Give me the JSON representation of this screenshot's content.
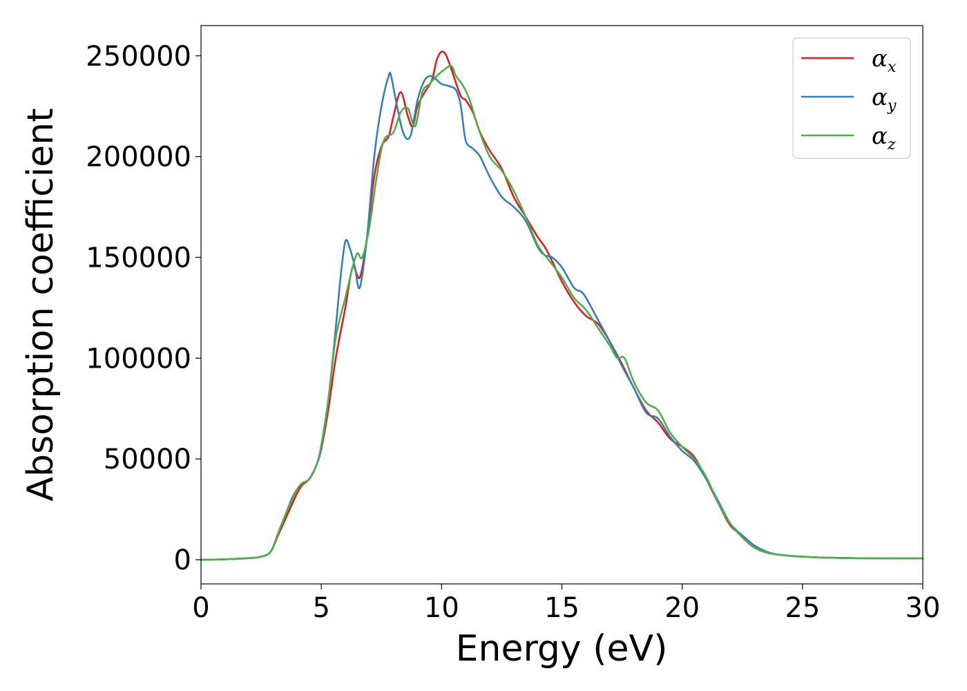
{
  "chart_data": {
    "type": "line",
    "xlabel": "Energy (eV)",
    "ylabel": "Absorption coefficient",
    "xlim": [
      0,
      30
    ],
    "ylim": [
      -12000,
      265000
    ],
    "xticks": [
      0,
      5,
      10,
      15,
      20,
      25,
      30
    ],
    "yticks": [
      0,
      50000,
      100000,
      150000,
      200000,
      250000
    ],
    "grid": false,
    "legend_position": "top-right",
    "series": [
      {
        "name": "α_x",
        "symbol": "α",
        "subscript": "x",
        "color": "#e41a1c",
        "x": [
          0,
          1,
          2,
          2.5,
          2.9,
          3.2,
          3.5,
          3.8,
          4.0,
          4.2,
          4.5,
          4.8,
          5.0,
          5.3,
          5.6,
          6.0,
          6.3,
          6.6,
          6.9,
          7.2,
          7.5,
          7.8,
          8.0,
          8.3,
          8.6,
          8.8,
          9.0,
          9.3,
          9.6,
          9.8,
          10.0,
          10.2,
          10.5,
          10.8,
          11.0,
          11.3,
          11.6,
          12.0,
          12.5,
          13.0,
          13.5,
          14.0,
          14.3,
          14.6,
          15.0,
          15.5,
          16.0,
          16.5,
          17.0,
          17.5,
          18.0,
          18.5,
          19.0,
          19.5,
          20.0,
          20.5,
          21.0,
          21.5,
          22.0,
          22.5,
          23.0,
          23.5,
          24.0,
          25.0,
          26.0,
          28.0,
          30.0
        ],
        "y": [
          0,
          200,
          800,
          1500,
          4000,
          12000,
          20000,
          28000,
          33000,
          37000,
          40000,
          47000,
          55000,
          75000,
          100000,
          125000,
          145000,
          140000,
          160000,
          190000,
          205000,
          210000,
          220000,
          232000,
          220000,
          215000,
          225000,
          232000,
          238000,
          248000,
          252000,
          250000,
          240000,
          230000,
          228000,
          222000,
          212000,
          203000,
          194000,
          180000,
          170000,
          160000,
          155000,
          148000,
          138000,
          128000,
          121000,
          117000,
          108000,
          97000,
          85000,
          74000,
          68000,
          60000,
          56000,
          51000,
          40000,
          28000,
          17000,
          12000,
          7000,
          4000,
          2500,
          1500,
          1000,
          700,
          600
        ]
      },
      {
        "name": "α_y",
        "symbol": "α",
        "subscript": "y",
        "color": "#377eb8",
        "x": [
          0,
          1,
          2,
          2.5,
          2.9,
          3.2,
          3.5,
          3.8,
          4.0,
          4.2,
          4.5,
          4.8,
          5.0,
          5.3,
          5.6,
          5.8,
          6.0,
          6.2,
          6.4,
          6.6,
          6.9,
          7.2,
          7.5,
          7.8,
          7.9,
          8.1,
          8.4,
          8.7,
          9.0,
          9.3,
          9.6,
          9.8,
          10.0,
          10.3,
          10.6,
          10.8,
          11.0,
          11.3,
          11.6,
          12.0,
          12.5,
          13.0,
          13.5,
          14.0,
          14.3,
          14.6,
          15.0,
          15.5,
          15.8,
          16.0,
          16.5,
          17.0,
          17.5,
          18.0,
          18.5,
          19.0,
          19.5,
          20.0,
          20.5,
          21.0,
          21.5,
          22.0,
          22.5,
          23.0,
          23.5,
          24.0,
          25.0,
          26.0,
          28.0,
          30.0
        ],
        "y": [
          0,
          200,
          800,
          1500,
          4000,
          13000,
          22000,
          31000,
          35000,
          38000,
          40000,
          47000,
          56000,
          80000,
          115000,
          140000,
          158000,
          154000,
          145000,
          135000,
          160000,
          200000,
          225000,
          240000,
          240000,
          228000,
          212000,
          210000,
          228000,
          238000,
          240000,
          238000,
          236000,
          235000,
          233000,
          225000,
          208000,
          204000,
          200000,
          190000,
          180000,
          175000,
          168000,
          155000,
          151000,
          150000,
          145000,
          135000,
          133000,
          130000,
          119000,
          108000,
          96000,
          85000,
          73000,
          70000,
          61000,
          54000,
          49000,
          40000,
          29000,
          18000,
          12000,
          7000,
          4000,
          2500,
          1500,
          1000,
          700,
          600
        ]
      },
      {
        "name": "α_z",
        "symbol": "α",
        "subscript": "z",
        "color": "#4daf4a",
        "x": [
          0,
          1,
          2,
          2.5,
          2.9,
          3.2,
          3.5,
          3.8,
          4.0,
          4.2,
          4.5,
          4.8,
          5.0,
          5.3,
          5.6,
          6.0,
          6.3,
          6.5,
          6.7,
          7.0,
          7.3,
          7.6,
          8.0,
          8.3,
          8.6,
          8.9,
          9.2,
          9.5,
          9.8,
          10.1,
          10.4,
          10.6,
          10.9,
          11.2,
          11.5,
          12.0,
          12.5,
          13.0,
          13.5,
          14.0,
          14.5,
          15.0,
          15.5,
          16.0,
          16.5,
          17.0,
          17.3,
          17.6,
          18.0,
          18.5,
          19.0,
          19.5,
          20.0,
          20.5,
          21.0,
          21.5,
          22.0,
          22.5,
          23.0,
          23.5,
          24.0,
          25.0,
          26.0,
          28.0,
          30.0
        ],
        "y": [
          0,
          200,
          800,
          1500,
          4000,
          13000,
          22000,
          30000,
          35000,
          38000,
          40000,
          47000,
          57000,
          80000,
          110000,
          130000,
          145000,
          152000,
          150000,
          165000,
          190000,
          208000,
          212000,
          222000,
          224000,
          215000,
          232000,
          236000,
          240000,
          243000,
          245000,
          240000,
          235000,
          227000,
          215000,
          200000,
          193000,
          183000,
          170000,
          156000,
          148000,
          140000,
          130000,
          124000,
          115000,
          106000,
          100000,
          100000,
          88000,
          78000,
          74000,
          63000,
          56000,
          50000,
          41000,
          28000,
          18000,
          11000,
          6000,
          3500,
          2500,
          1500,
          1000,
          700,
          600
        ]
      }
    ]
  }
}
